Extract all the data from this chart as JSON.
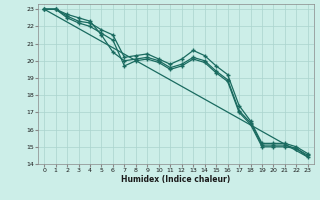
{
  "xlabel": "Humidex (Indice chaleur)",
  "bg_color": "#cceee8",
  "grid_color": "#aad4ce",
  "line_color": "#1a6b60",
  "xlim": [
    -0.5,
    23.5
  ],
  "ylim": [
    14,
    23.3
  ],
  "xticks": [
    0,
    1,
    2,
    3,
    4,
    5,
    6,
    7,
    8,
    9,
    10,
    11,
    12,
    13,
    14,
    15,
    16,
    17,
    18,
    19,
    20,
    21,
    22,
    23
  ],
  "yticks": [
    14,
    15,
    16,
    17,
    18,
    19,
    20,
    21,
    22,
    23
  ],
  "line1_x": [
    0,
    1,
    2,
    3,
    4,
    5,
    6,
    7,
    8,
    9,
    10,
    11,
    12,
    13,
    14,
    15,
    16,
    17,
    18,
    19,
    20,
    21,
    22,
    23
  ],
  "line1_y": [
    23,
    23,
    22.7,
    22.5,
    22.3,
    21.5,
    20.5,
    20.0,
    20.1,
    20.2,
    20.0,
    19.6,
    19.8,
    20.2,
    20.0,
    19.4,
    18.9,
    17.1,
    16.4,
    15.1,
    15.1,
    15.1,
    14.9,
    14.5
  ],
  "line2_x": [
    0,
    1,
    2,
    3,
    4,
    5,
    6,
    7,
    8,
    9,
    10,
    11,
    12,
    13,
    14,
    15,
    16,
    17,
    18,
    19,
    20,
    21,
    22,
    23
  ],
  "line2_y": [
    23,
    23,
    22.6,
    22.3,
    22.2,
    21.8,
    21.5,
    20.2,
    20.3,
    20.4,
    20.1,
    19.8,
    20.1,
    20.6,
    20.3,
    19.7,
    19.2,
    17.4,
    16.5,
    15.2,
    15.2,
    15.2,
    15.0,
    14.6
  ],
  "line3_x": [
    0,
    1,
    2,
    3,
    4,
    5,
    6,
    7,
    8,
    9,
    10,
    11,
    12,
    13,
    14,
    15,
    16,
    17,
    18,
    19,
    20,
    21,
    22,
    23
  ],
  "line3_y": [
    23,
    23,
    22.5,
    22.2,
    22.0,
    21.6,
    21.2,
    19.7,
    20.0,
    20.1,
    19.9,
    19.5,
    19.7,
    20.1,
    19.9,
    19.3,
    18.8,
    17.0,
    16.3,
    15.0,
    15.0,
    15.0,
    14.9,
    14.4
  ],
  "line4_x": [
    0,
    23
  ],
  "line4_y": [
    23,
    14.4
  ]
}
